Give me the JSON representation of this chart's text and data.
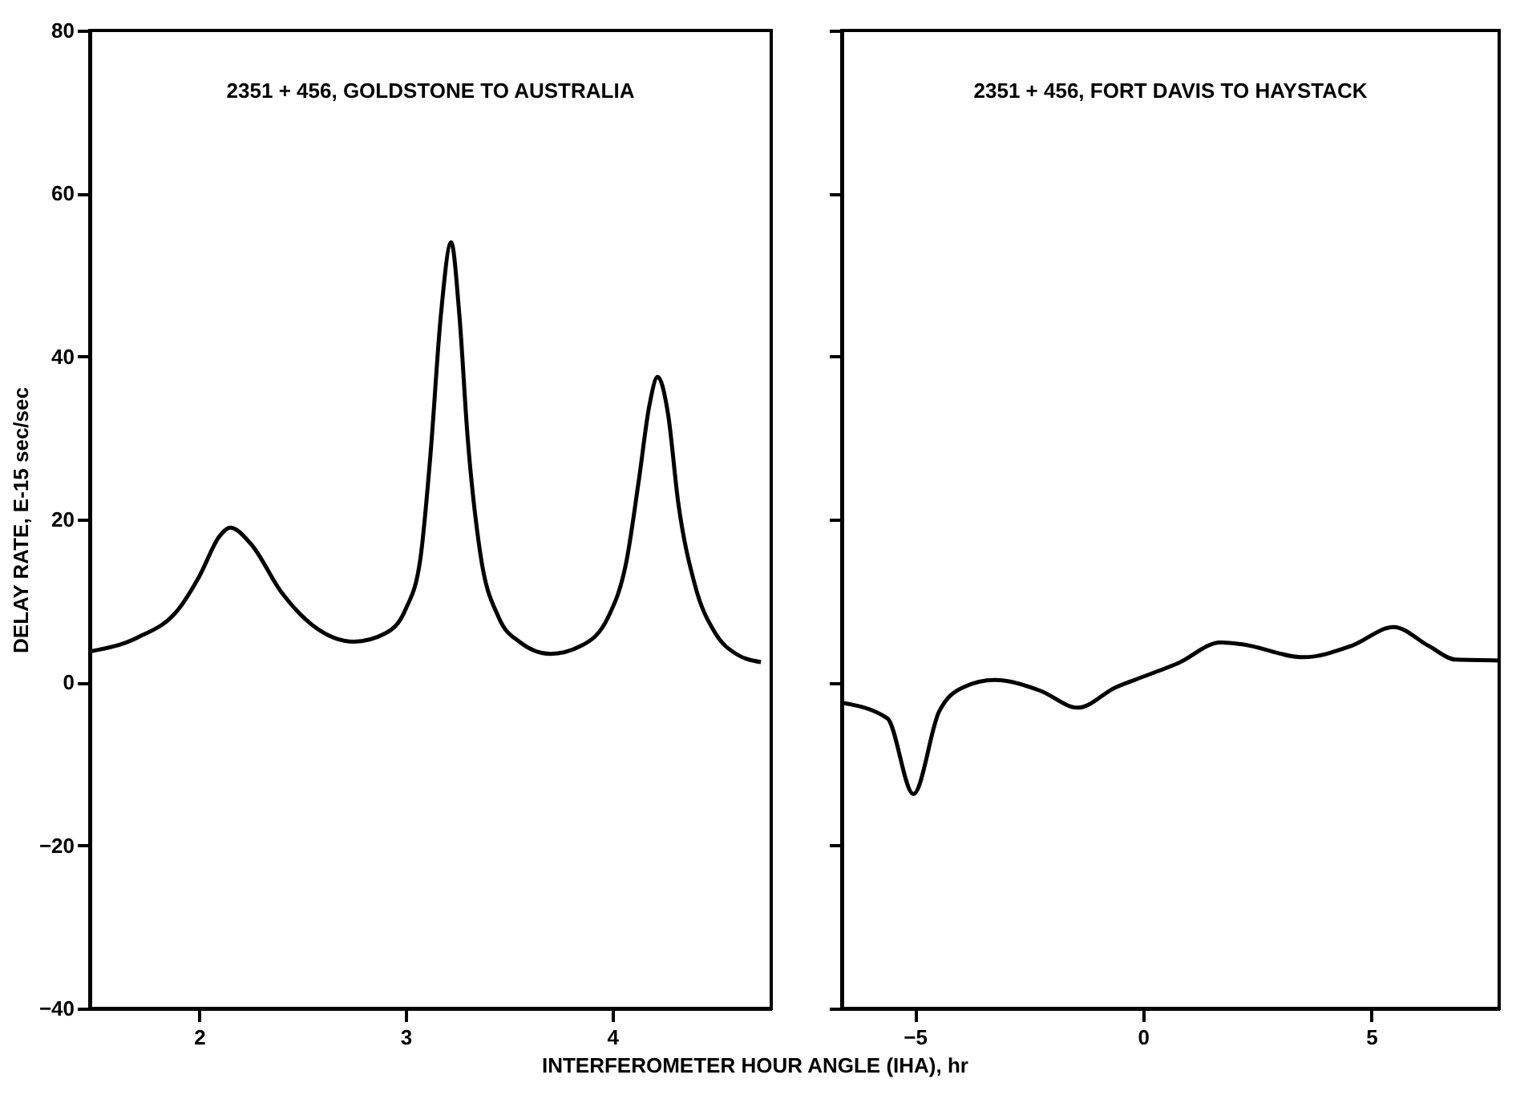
{
  "chart_data": [
    {
      "type": "line",
      "annotations": [
        "2351 + 456, GOLDSTONE TO AUSTRALIA"
      ],
      "xlabel": "INTERFEROMETER HOUR ANGLE (IHA), hr",
      "ylabel": "DELAY RATE, E-15 sec/sec",
      "xlim": [
        1.47,
        4.77
      ],
      "xticks": [
        2,
        3,
        4
      ],
      "ylim": [
        -40,
        80
      ],
      "yticks": [
        -40,
        -20,
        0,
        20,
        40,
        60,
        80
      ],
      "grid": false,
      "marker": "none",
      "line_style": "solid",
      "series": [
        {
          "color": "#000000",
          "x": [
            1.47,
            1.7,
            1.9,
            2.0,
            2.1,
            2.15,
            2.25,
            2.4,
            2.55,
            2.75,
            2.9,
            3.0,
            3.07,
            3.12,
            3.17,
            3.22,
            3.26,
            3.3,
            3.36,
            3.45,
            3.55,
            3.7,
            3.85,
            3.98,
            4.07,
            4.13,
            4.18,
            4.22,
            4.27,
            4.32,
            4.4,
            4.5,
            4.6,
            4.72
          ],
          "values": [
            3.8,
            5.5,
            9,
            13,
            18,
            19,
            17,
            11,
            7,
            5,
            6,
            9,
            15,
            28,
            45,
            54,
            45,
            30,
            16,
            8,
            5,
            3.5,
            4.5,
            8,
            15,
            25,
            34,
            37.5,
            33,
            22,
            12,
            6,
            3.5,
            2.5
          ]
        }
      ]
    },
    {
      "type": "line",
      "annotations": [
        "2351 + 456, FORT DAVIS TO HAYSTACK"
      ],
      "xlim": [
        -6.6,
        7.8
      ],
      "xticks": [
        -5,
        0,
        5
      ],
      "ylim": [
        -40,
        80
      ],
      "yticks": [
        -40,
        -20,
        0,
        20,
        40,
        60,
        80
      ],
      "tick_labels": "x",
      "grid": false,
      "marker": "none",
      "line_style": "solid",
      "series": [
        {
          "color": "#000000",
          "x": [
            -6.6,
            -5.6,
            -5.03,
            -4.47,
            -3.94,
            -3.25,
            -2.26,
            -1.43,
            -0.6,
            0,
            0.78,
            1.69,
            2.14,
            3.51,
            4.57,
            5.49,
            6.25,
            6.85,
            7.8
          ],
          "values": [
            -2.5,
            -4.4,
            -13.7,
            -3.6,
            -0.6,
            0.3,
            -1,
            -3.1,
            -0.6,
            0.7,
            2.4,
            4.9,
            4.7,
            3.1,
            4.5,
            6.8,
            4.5,
            2.8,
            2.7
          ]
        }
      ]
    }
  ]
}
